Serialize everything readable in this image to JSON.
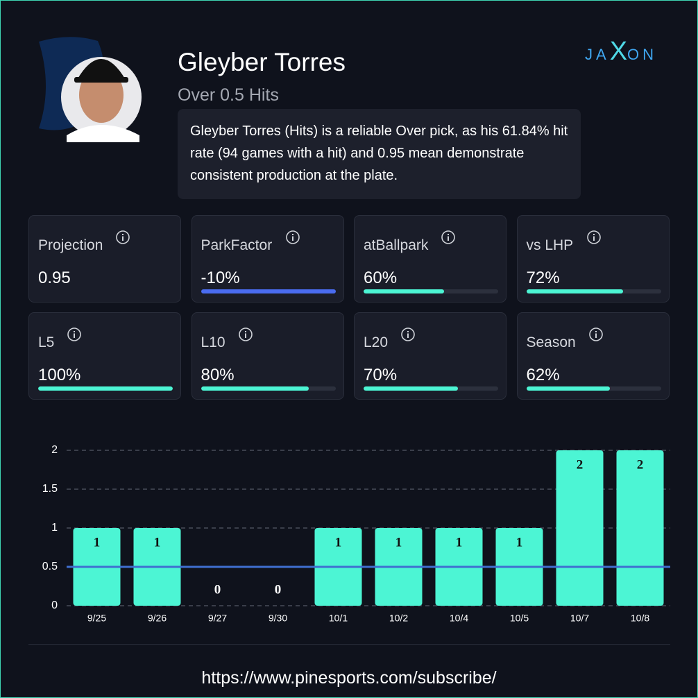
{
  "header": {
    "name": "Gleyber Torres",
    "subtitle": "Over 0.5 Hits",
    "description": "Gleyber Torres (Hits) is a reliable Over pick, as his 61.84% hit rate (94 games with a hit) and 0.95 mean demonstrate consistent production at the plate."
  },
  "brand": {
    "left": "JA",
    "mid": "X",
    "right": "ON"
  },
  "stats": [
    {
      "label": "Projection",
      "value": 0.95,
      "value_label": "0.95"
    },
    {
      "label": "ParkFactor",
      "value": -10,
      "value_label": "-10%",
      "track_color": "#4a6cf0"
    },
    {
      "label": "atBallpark",
      "value": 60,
      "value_label": "60%",
      "bar": true
    },
    {
      "label": "vs LHP",
      "value": 72,
      "value_label": "72%",
      "bar": true
    },
    {
      "label": "L5",
      "value": 100,
      "value_label": "100%",
      "bar": true
    },
    {
      "label": "L10",
      "value": 80,
      "value_label": "80%",
      "bar": true
    },
    {
      "label": "L20",
      "value": 70,
      "value_label": "70%",
      "bar": true
    },
    {
      "label": "Season",
      "value": 62,
      "value_label": "62%",
      "bar": true
    }
  ],
  "chart_data": {
    "type": "bar",
    "categories": [
      "9/25",
      "9/26",
      "9/27",
      "9/30",
      "10/1",
      "10/2",
      "10/4",
      "10/5",
      "10/7",
      "10/8"
    ],
    "values": [
      1,
      1,
      0,
      0,
      1,
      1,
      1,
      1,
      2,
      2
    ],
    "color": "#4cf5d4",
    "line_value": 0.5,
    "line_color": "#3f6fd0",
    "ylim": [
      0,
      2
    ],
    "yticks": [
      0,
      0.5,
      1,
      1.5,
      2
    ],
    "grid": true
  },
  "footer": {
    "url": "https://www.pinesports.com/subscribe/"
  }
}
